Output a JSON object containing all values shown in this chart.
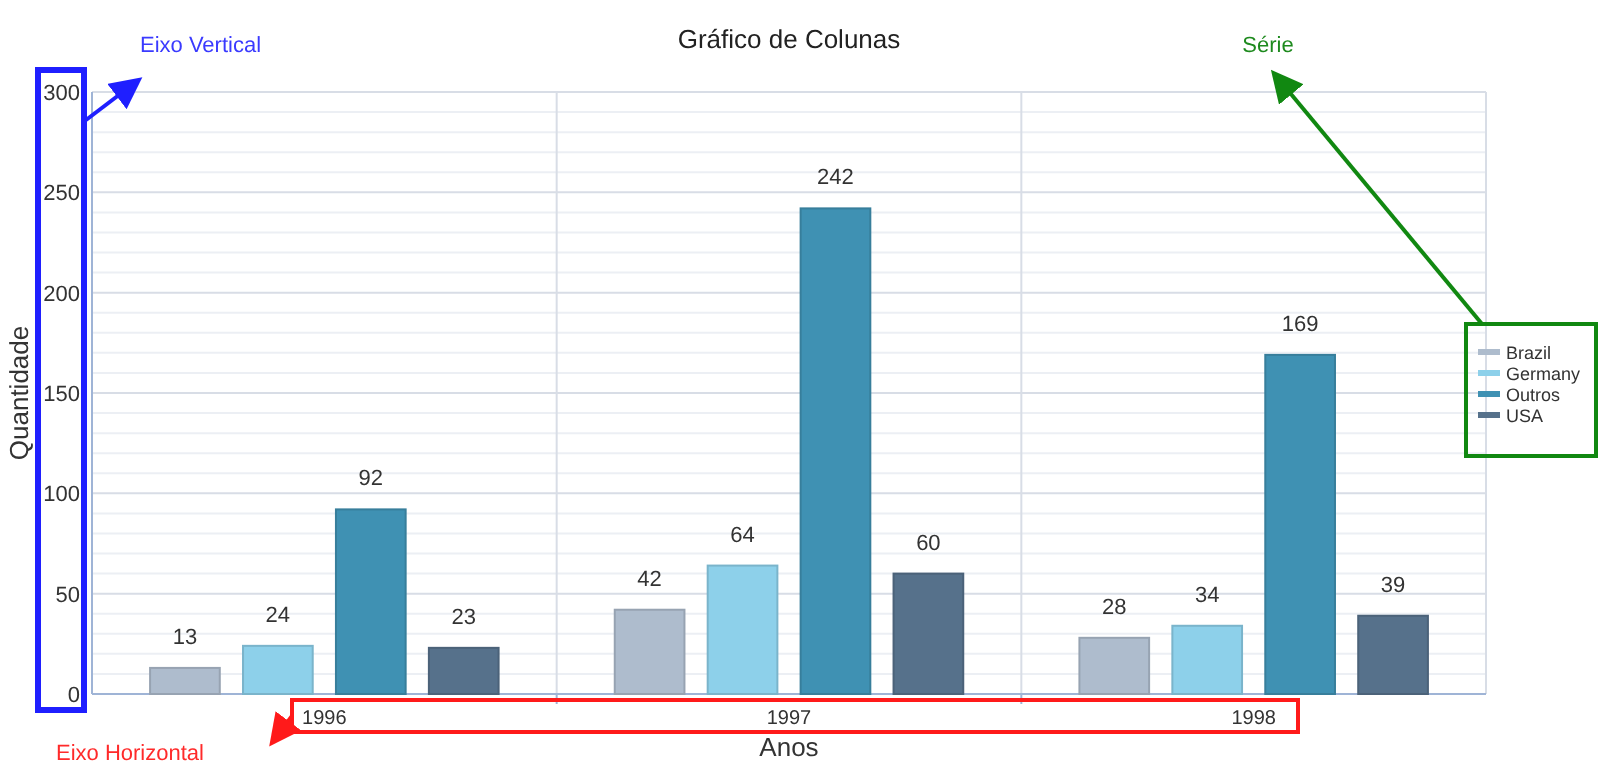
{
  "chart_data": {
    "type": "bar",
    "title": "Gráfico de Colunas",
    "xlabel": "Anos",
    "ylabel": "Quantidade",
    "categories": [
      "1996",
      "1997",
      "1998"
    ],
    "series": [
      {
        "name": "Brazil",
        "color": "#aebccd",
        "values": [
          13,
          42,
          28
        ]
      },
      {
        "name": "Germany",
        "color": "#8dd0ea",
        "values": [
          24,
          64,
          34
        ]
      },
      {
        "name": "Outros",
        "color": "#3f91b3",
        "values": [
          92,
          242,
          169
        ]
      },
      {
        "name": "USA",
        "color": "#56718b",
        "values": [
          23,
          60,
          39
        ]
      }
    ],
    "ylim": [
      0,
      300
    ],
    "yticks": [
      0,
      50,
      100,
      150,
      200,
      250,
      300
    ],
    "grid": true,
    "legend": "right",
    "data_labels": true,
    "annotations": [
      "Eixo Vertical",
      "Série",
      "Eixo Horizontal"
    ]
  }
}
